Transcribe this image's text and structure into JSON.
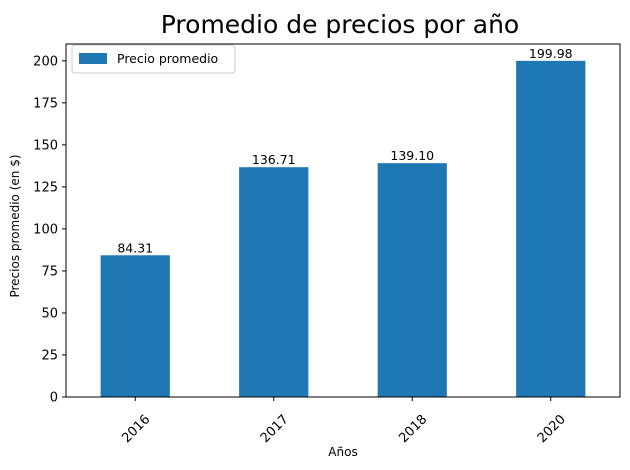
{
  "chart_data": {
    "type": "bar",
    "title": "Promedio de precios por año",
    "xlabel": "Años",
    "ylabel": "Precios promedio (en $)",
    "categories": [
      "2016",
      "2017",
      "2018",
      "2020"
    ],
    "series": [
      {
        "name": "Precio promedio",
        "values": [
          84.31,
          136.71,
          139.1,
          199.98
        ],
        "data_labels": [
          "84.31",
          "136.71",
          "139.10",
          "199.98"
        ],
        "color": "#1f77b4"
      }
    ],
    "ylim": [
      0,
      210
    ],
    "yticks": [
      0,
      25,
      50,
      75,
      100,
      125,
      150,
      175,
      200
    ],
    "x_tick_rotation_deg": 45,
    "grid": false,
    "legend_position": "upper left"
  }
}
